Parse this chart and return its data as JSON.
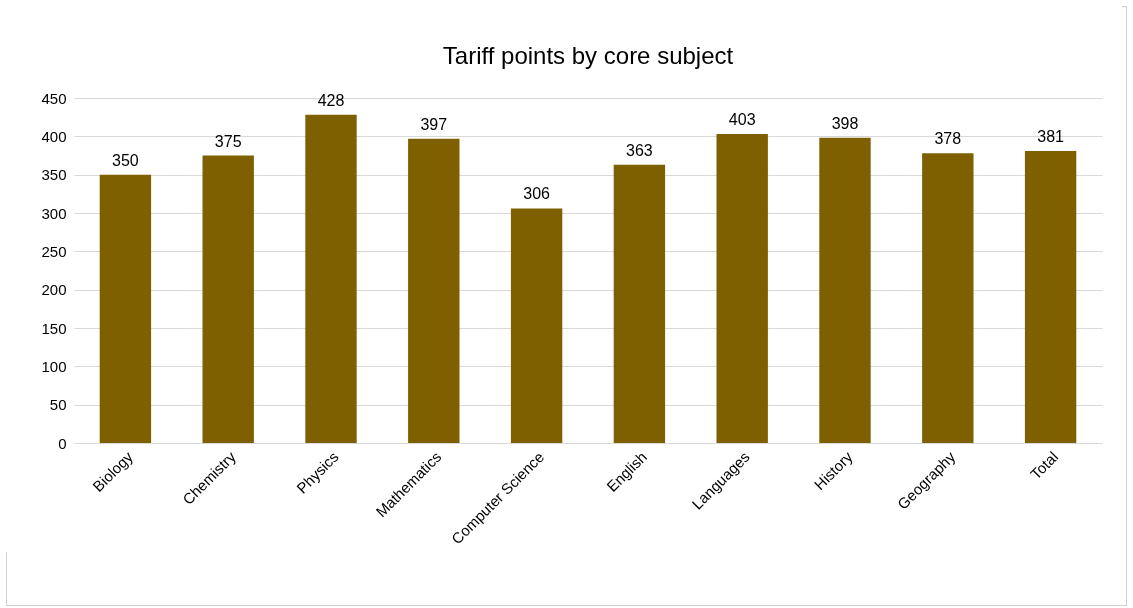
{
  "chart_data": {
    "type": "bar",
    "title": "Tariff points by core subject",
    "categories": [
      "Biology",
      "Chemistry",
      "Physics",
      "Mathematics",
      "Computer Science",
      "English",
      "Languages",
      "History",
      "Geography",
      "Total"
    ],
    "values": [
      350,
      375,
      428,
      397,
      306,
      363,
      403,
      398,
      378,
      381
    ],
    "color": "#7f6000",
    "ylim": [
      0,
      450
    ],
    "yticks": [
      0,
      50,
      100,
      150,
      200,
      250,
      300,
      350,
      400,
      450
    ],
    "grid": "y",
    "data_labels": true
  }
}
